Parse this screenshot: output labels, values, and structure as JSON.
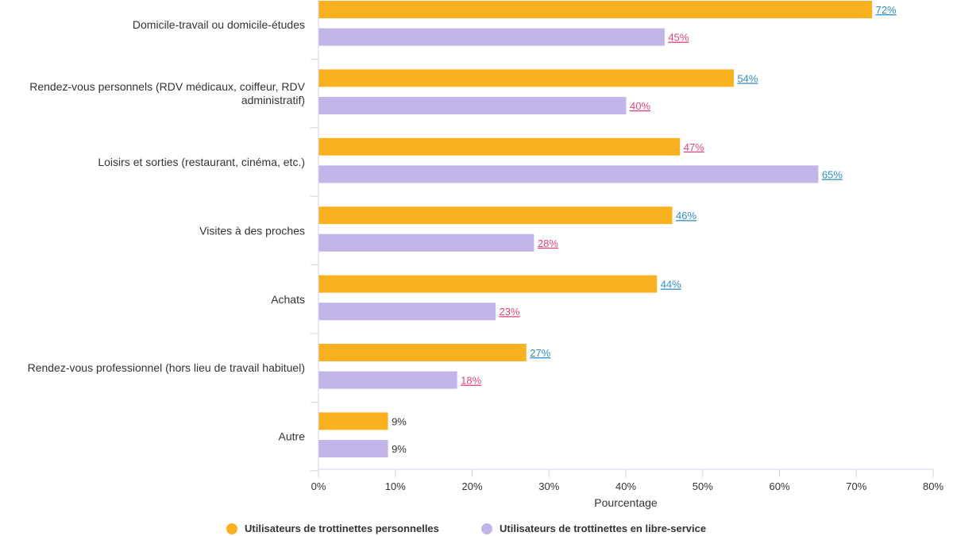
{
  "chart_data": {
    "type": "bar",
    "orientation": "horizontal",
    "categories": [
      [
        "Domicile-travail ou domicile-études"
      ],
      [
        "Rendez-vous personnels (RDV médicaux, coiffeur, RDV",
        "administratif)"
      ],
      [
        "Loisirs et sorties (restaurant, cinéma, etc.)"
      ],
      [
        "Visites à des proches"
      ],
      [
        "Achats"
      ],
      [
        "Rendez-vous professionnel (hors lieu de travail habituel)"
      ],
      [
        "Autre"
      ]
    ],
    "series": [
      {
        "name": "Utilisateurs de trottinettes personnelles",
        "color": "#f9b11f",
        "values": [
          72,
          54,
          47,
          46,
          44,
          27,
          9
        ],
        "label_colors": [
          "#2f8fc4",
          "#2f8fc4",
          "#e0457b",
          "#2f8fc4",
          "#2f8fc4",
          "#2f8fc4",
          "#333333"
        ]
      },
      {
        "name": "Utilisateurs de trottinettes en libre-service",
        "color": "#c3b4ea",
        "values": [
          45,
          40,
          65,
          28,
          23,
          18,
          9
        ],
        "label_colors": [
          "#e0457b",
          "#e0457b",
          "#2f8fc4",
          "#e0457b",
          "#e0457b",
          "#e0457b",
          "#333333"
        ]
      }
    ],
    "value_suffix": "%",
    "xlim": [
      0,
      80
    ],
    "xticks": [
      "0%",
      "10%",
      "20%",
      "30%",
      "40%",
      "50%",
      "60%",
      "70%",
      "80%"
    ],
    "xlabel": "Pourcentage",
    "ylabel": "",
    "grid": false,
    "legend_position": "bottom-center"
  },
  "colors": {
    "axis": "#ccd6eb",
    "text": "#333333"
  }
}
